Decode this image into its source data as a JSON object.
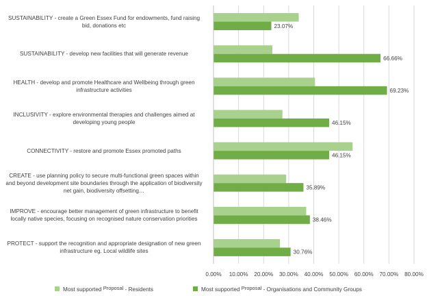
{
  "chart_data": {
    "type": "bar",
    "orientation": "horizontal",
    "categories": [
      "SUSTAINABILITY - create a Green Essex Fund for endowments, fund raising bid, donations etc",
      "SUSTAINABILITY - develop new facilities that will generate revenue",
      "HEALTH - develop and promote Healthcare and Wellbeing through green infrastructure activities",
      "INCLUSIVITY - explore environmental therapies and challenges aimed at developing young people",
      "CONNECTIVITY - restore and promote Essex promoted paths",
      "CREATE - use planning policy to secure multi-functional green spaces within and beyond development site boundaries through the application of biodiversity net gain, biodiversity offsetting…",
      "IMPROVE - encourage better management of green infrastructure to benefit locally native species, focusing on recognised nature conservation priorities",
      "PROTECT - support the recognition and appropriate designation of new green infrastructure eg. Local wildlife sites"
    ],
    "series": [
      {
        "name": "Most supported Proposal - Residents",
        "color": "#a9d18e",
        "values": [
          34.0,
          23.5,
          40.5,
          27.5,
          55.5,
          29.0,
          37.0,
          26.5
        ]
      },
      {
        "name": "Most supported Proposal - Organisations and Community Groups",
        "color": "#70ad47",
        "values": [
          23.07,
          66.66,
          69.23,
          46.15,
          46.15,
          35.89,
          38.46,
          30.76
        ],
        "data_labels": [
          "23.07%",
          "66.66%",
          "69.23%",
          "46.15%",
          "46.15%",
          "35.89%",
          "38.46%",
          "30.76%"
        ]
      }
    ],
    "xlim": [
      0,
      80
    ],
    "x_ticks": [
      "0.00%",
      "10.00%",
      "20.00%",
      "30.00%",
      "40.00%",
      "50.00%",
      "60.00%",
      "70.00%",
      "80.00%"
    ],
    "grid": true,
    "legend_position": "bottom",
    "title": "",
    "xlabel": "",
    "ylabel": ""
  },
  "legend": {
    "residents_a": "Most supported ",
    "residents_b": "Proposal",
    "residents_c": " - Residents",
    "orgs_a": "Most supported ",
    "orgs_b": "Proposal",
    "orgs_c": " - Organisations and Community Groups"
  }
}
